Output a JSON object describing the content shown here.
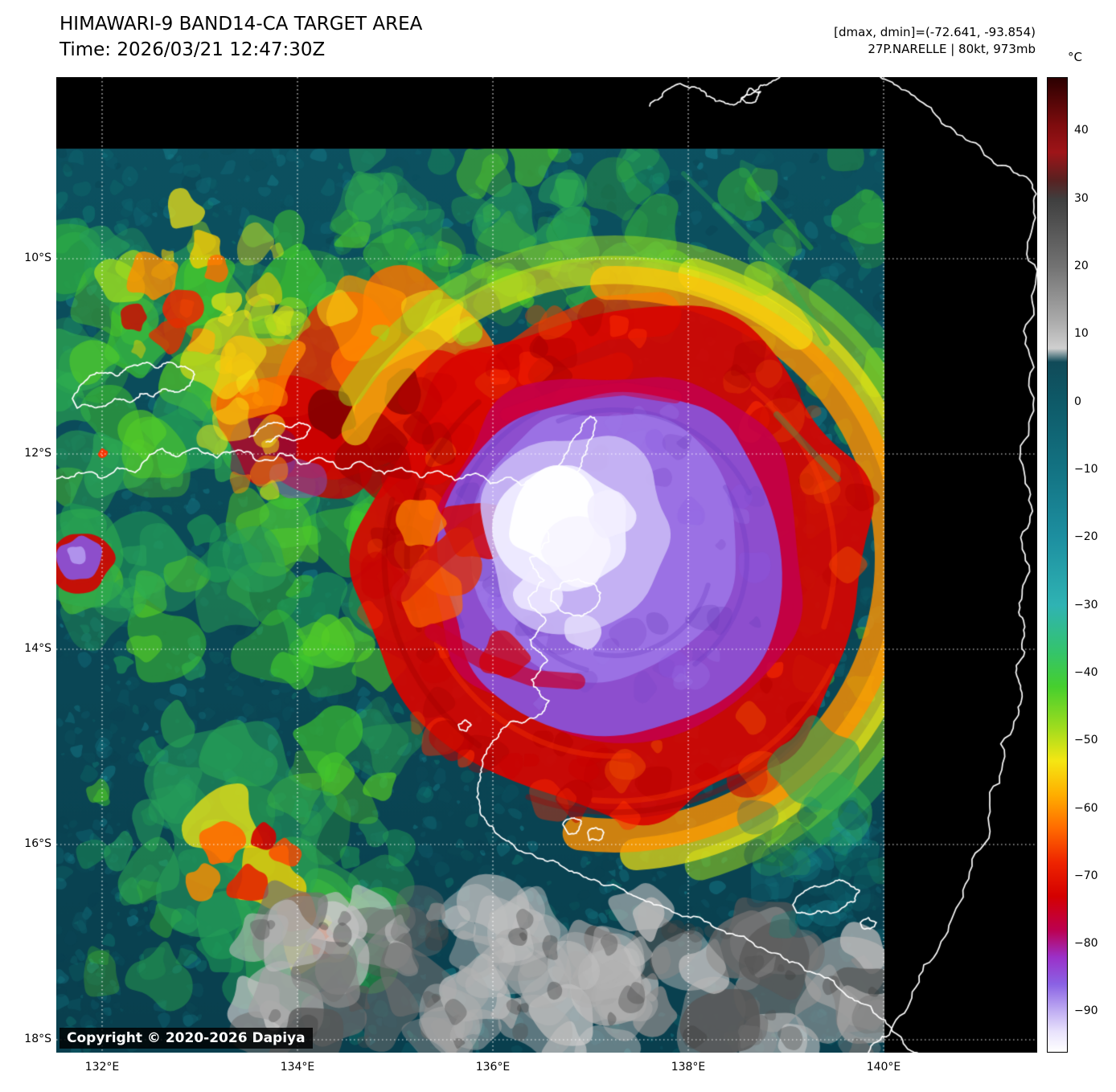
{
  "header": {
    "title": "HIMAWARI-9 BAND14-CA TARGET AREA",
    "subtitle": "Time: 2026/03/21 12:47:30Z",
    "info_line1": "[dmax, dmin]=(-72.641, -93.854)",
    "info_line2": "27P.NARELLE | 80kt, 973mb"
  },
  "colorbar": {
    "unit_label": "°C",
    "tmax": 48,
    "tmin": -96,
    "ticks": [
      40,
      30,
      20,
      10,
      0,
      -10,
      -20,
      -30,
      -40,
      -50,
      -60,
      -70,
      -80,
      -90
    ],
    "stops": [
      {
        "t": 48,
        "c": "#2b0000"
      },
      {
        "t": 41,
        "c": "#7e0c0e"
      },
      {
        "t": 37,
        "c": "#9e1418"
      },
      {
        "t": 33,
        "c": "#5a2020"
      },
      {
        "t": 30,
        "c": "#3f3f3f"
      },
      {
        "t": 20,
        "c": "#737373"
      },
      {
        "t": 12,
        "c": "#ababab"
      },
      {
        "t": 8,
        "c": "#cfcfcf"
      },
      {
        "t": 6,
        "c": "#104a58"
      },
      {
        "t": 0,
        "c": "#0e5a68"
      },
      {
        "t": -10,
        "c": "#137383"
      },
      {
        "t": -20,
        "c": "#1d8fa0"
      },
      {
        "t": -30,
        "c": "#2fb3b3"
      },
      {
        "t": -37,
        "c": "#34c46a"
      },
      {
        "t": -42,
        "c": "#46cf2e"
      },
      {
        "t": -48,
        "c": "#9edc1e"
      },
      {
        "t": -53,
        "c": "#f5e613"
      },
      {
        "t": -58,
        "c": "#ffae00"
      },
      {
        "t": -63,
        "c": "#ff6a00"
      },
      {
        "t": -68,
        "c": "#ee2400"
      },
      {
        "t": -73,
        "c": "#d40000"
      },
      {
        "t": -78,
        "c": "#bc0050"
      },
      {
        "t": -82,
        "c": "#9b30c8"
      },
      {
        "t": -86,
        "c": "#8a62e4"
      },
      {
        "t": -90,
        "c": "#c0aef2"
      },
      {
        "t": -93,
        "c": "#e8e2fc"
      },
      {
        "t": -96,
        "c": "#ffffff"
      }
    ]
  },
  "map": {
    "x_tick_labels": [
      "132°E",
      "134°E",
      "136°E",
      "138°E",
      "140°E"
    ],
    "y_tick_labels": [
      "10°S",
      "12°S",
      "14°S",
      "16°S",
      "18°S"
    ]
  },
  "copyright": "Copyright © 2020-2026 Dapiya"
}
